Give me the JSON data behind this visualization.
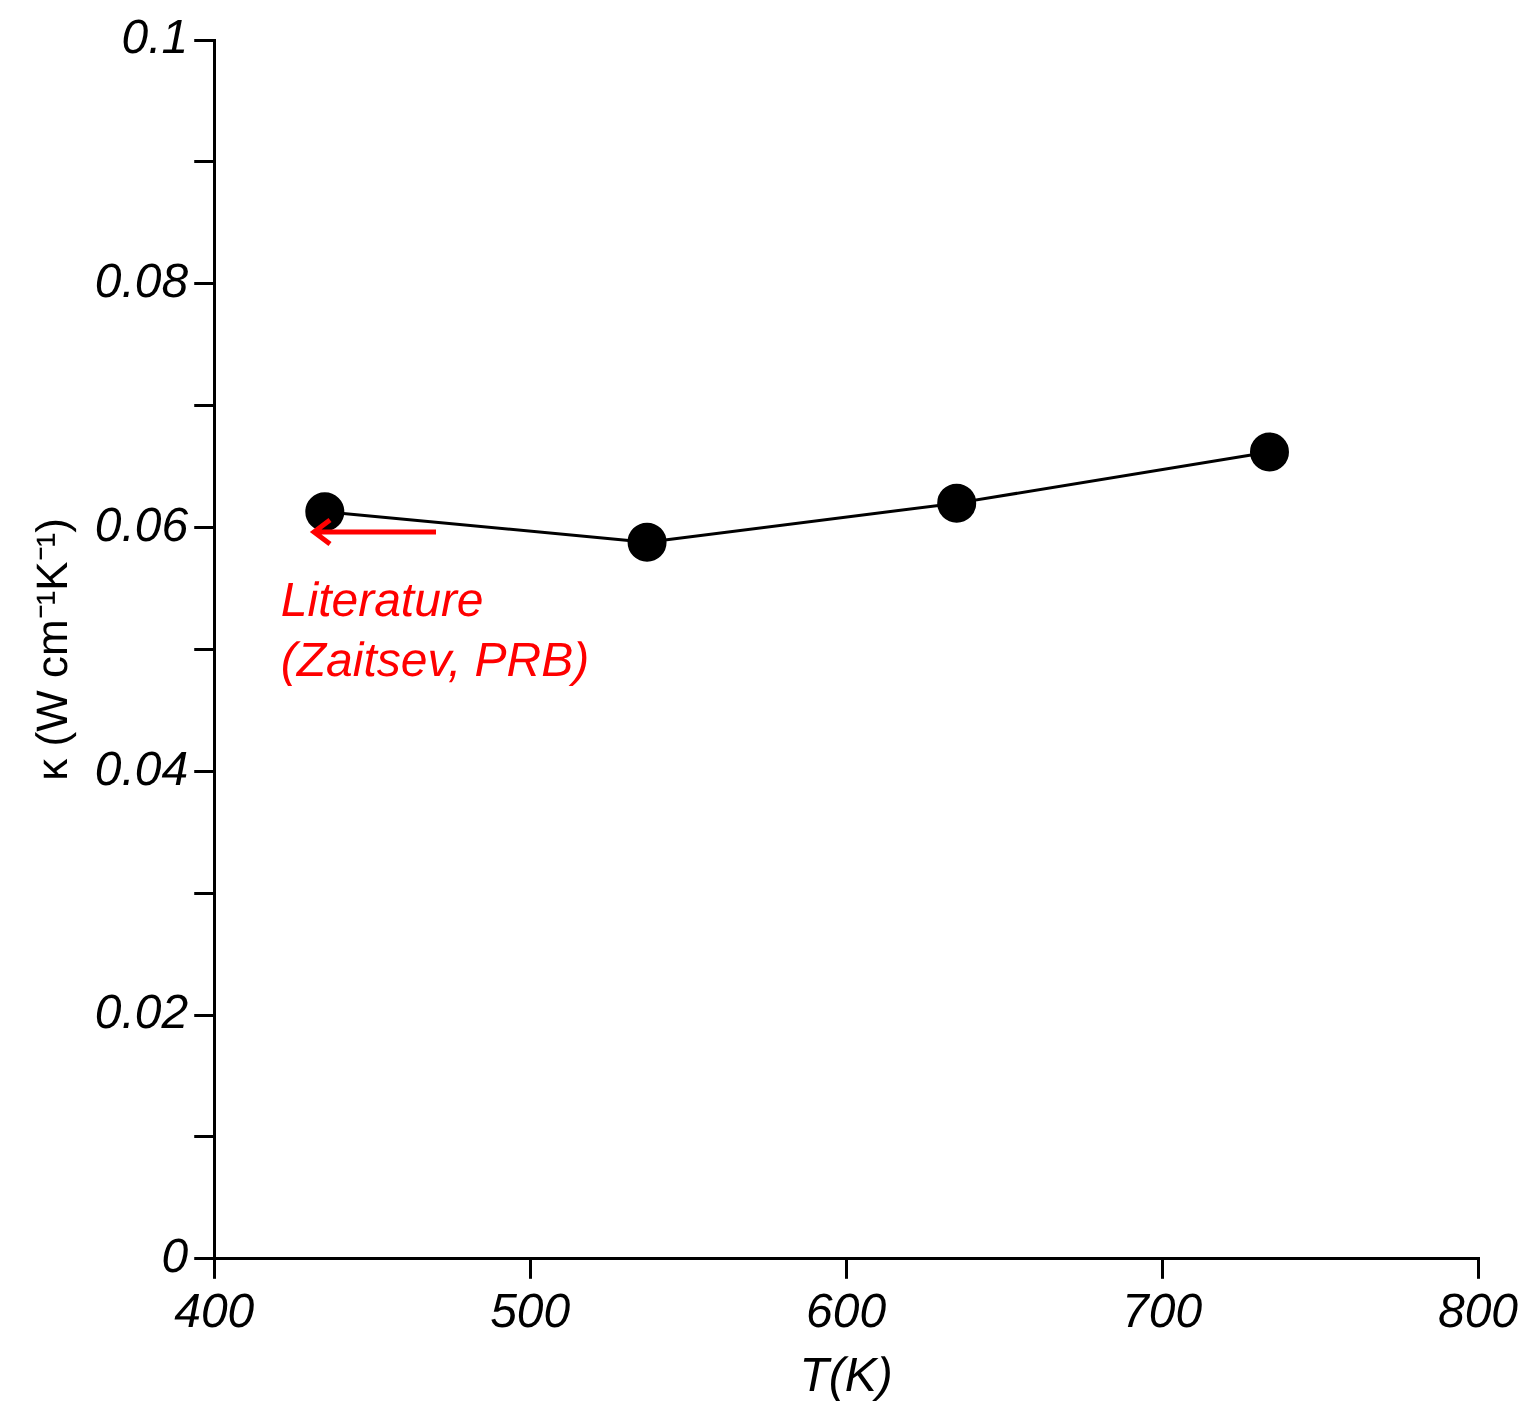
{
  "chart_data": {
    "type": "line",
    "xlabel": "T(K)",
    "ylabel": "κ (W cm⁻¹K⁻¹)",
    "x": [
      435,
      537,
      635,
      734
    ],
    "series": [
      {
        "color": "#000000",
        "values": [
          0.0613,
          0.0588,
          0.062,
          0.0662
        ]
      }
    ],
    "xlim": [
      400,
      800
    ],
    "xticks": [
      400,
      500,
      600,
      700,
      800
    ],
    "ylim": [
      0,
      0.1
    ],
    "yticks": [
      0,
      {
        "value": 0.01,
        "label": null
      },
      0.02,
      {
        "value": 0.03,
        "label": null
      },
      0.04,
      {
        "value": 0.05,
        "label": null
      },
      0.06,
      {
        "value": 0.07,
        "label": null
      },
      0.08,
      {
        "value": 0.09,
        "label": null
      },
      0.1
    ],
    "marker": "circle",
    "line_style": "solid",
    "grid": false,
    "legend": false,
    "annotations": [
      {
        "text": "Literature\n(Zaitsev, PRB)",
        "x": 435,
        "y": 0.0613
      }
    ]
  }
}
